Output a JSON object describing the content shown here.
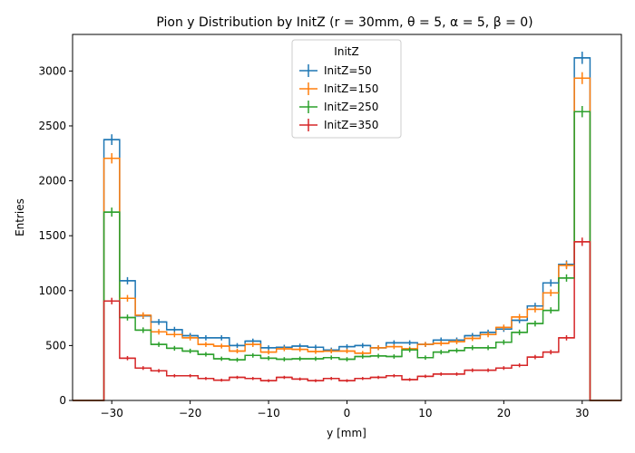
{
  "chart_data": {
    "type": "histogram-step",
    "title": "Pion y Distribution by InitZ (r = 30mm, θ = 5, α = 5, β = 0)",
    "xlabel": "y [mm]",
    "ylabel": "Entries",
    "xlim": [
      -35,
      35
    ],
    "ylim": [
      0,
      3333
    ],
    "xticks": [
      -30,
      -20,
      -10,
      0,
      10,
      20,
      30
    ],
    "xtick_labels": [
      "−30",
      "−20",
      "−10",
      "0",
      "10",
      "20",
      "30"
    ],
    "yticks": [
      0,
      500,
      1000,
      1500,
      2000,
      2500,
      3000
    ],
    "ytick_labels": [
      "0",
      "500",
      "1000",
      "1500",
      "2000",
      "2500",
      "3000"
    ],
    "bin_edges": [
      -35,
      -31,
      -29,
      -27,
      -25,
      -23,
      -21,
      -19,
      -17,
      -15,
      -13,
      -11,
      -9,
      -7,
      -5,
      -3,
      -1,
      1,
      3,
      5,
      7,
      9,
      11,
      13,
      15,
      17,
      19,
      21,
      23,
      25,
      27,
      29,
      31,
      35
    ],
    "legend": {
      "title": "InitZ",
      "position": "upper center"
    },
    "series": [
      {
        "name": "InitZ=50",
        "color": "#1f77b4",
        "values": [
          0,
          2375,
          1090,
          770,
          715,
          645,
          590,
          570,
          570,
          500,
          540,
          480,
          485,
          495,
          485,
          460,
          490,
          500,
          480,
          525,
          525,
          510,
          550,
          550,
          590,
          620,
          650,
          730,
          860,
          1070,
          1240,
          3120,
          0
        ]
      },
      {
        "name": "InitZ=150",
        "color": "#ff7f0e",
        "values": [
          0,
          2205,
          930,
          775,
          625,
          600,
          570,
          510,
          495,
          450,
          510,
          440,
          470,
          465,
          445,
          450,
          450,
          430,
          480,
          490,
          470,
          510,
          520,
          535,
          565,
          600,
          665,
          760,
          830,
          980,
          1230,
          2935,
          0
        ]
      },
      {
        "name": "InitZ=250",
        "color": "#2ca02c",
        "values": [
          0,
          1715,
          755,
          640,
          510,
          475,
          450,
          420,
          380,
          370,
          410,
          385,
          375,
          380,
          380,
          390,
          375,
          400,
          405,
          400,
          460,
          390,
          440,
          455,
          480,
          480,
          530,
          620,
          700,
          820,
          1115,
          2630,
          0
        ]
      },
      {
        "name": "InitZ=350",
        "color": "#d62728",
        "values": [
          0,
          905,
          385,
          295,
          270,
          225,
          225,
          200,
          185,
          210,
          200,
          180,
          210,
          195,
          180,
          200,
          180,
          200,
          210,
          225,
          190,
          220,
          240,
          240,
          275,
          275,
          295,
          320,
          395,
          440,
          570,
          1445,
          0
        ]
      }
    ]
  }
}
